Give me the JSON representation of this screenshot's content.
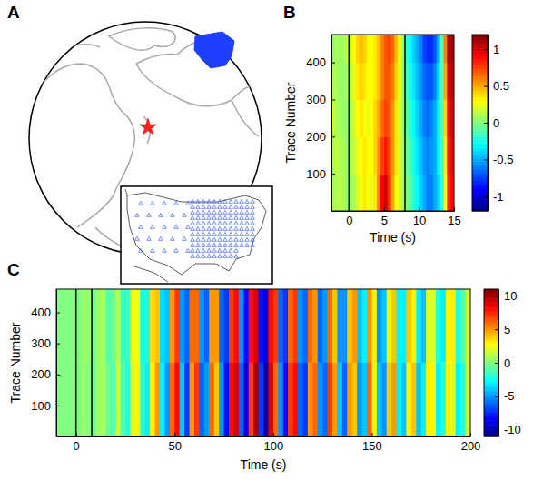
{
  "chart_data": [
    {
      "type": "map",
      "title": "A"
    },
    {
      "type": "heatmap",
      "title": "B",
      "xlabel": "Time (s)",
      "ylabel": "Trace Number",
      "xlim": [
        -2.5,
        15
      ],
      "xticks": [
        0,
        5,
        10,
        15
      ],
      "ylim": [
        0,
        475
      ],
      "yticks": [
        100,
        200,
        300,
        400
      ],
      "vlines": [
        0,
        8
      ],
      "cells": {
        "x": [
          -2.5,
          -2,
          -1.5,
          -1,
          -0.5,
          0,
          0.5,
          1,
          1.5,
          2,
          2.5,
          3,
          3.5,
          4,
          4.5,
          5,
          5.5,
          6,
          6.5,
          7,
          7.5,
          8,
          8.5,
          9,
          9.5,
          10,
          10.5,
          11,
          11.5,
          12,
          12.5,
          13,
          13.5,
          14,
          14.5,
          15
        ],
        "y": [
          0,
          100,
          200,
          300,
          400,
          475
        ],
        "values": [
          [
            0.1,
            0.1,
            0.15,
            0.1,
            0.05,
            0.05,
            0.1,
            0.2,
            0.3,
            0.35,
            0.3,
            0.25,
            0.35,
            0.6,
            0.9,
            1.0,
            0.8,
            0.5,
            0.3,
            0.2,
            0.1,
            0,
            -0.1,
            -0.2,
            -0.3,
            -0.4,
            -0.5,
            -0.6,
            -0.6,
            -0.5,
            -0.4,
            -0.2,
            0.3,
            0.8,
            0.9
          ],
          [
            0.1,
            0.15,
            0.1,
            0.1,
            0.05,
            0.1,
            0.15,
            0.25,
            0.3,
            0.35,
            0.3,
            0.3,
            0.4,
            0.55,
            0.75,
            0.85,
            0.75,
            0.55,
            0.35,
            0.2,
            0.1,
            -0.05,
            -0.15,
            -0.25,
            -0.35,
            -0.45,
            -0.55,
            -0.6,
            -0.55,
            -0.5,
            -0.35,
            -0.15,
            0.35,
            0.85,
            0.95
          ],
          [
            0.15,
            0.1,
            0.1,
            0.05,
            0.05,
            0.1,
            0.2,
            0.3,
            0.35,
            0.3,
            0.25,
            0.3,
            0.4,
            0.5,
            0.65,
            0.75,
            0.7,
            0.55,
            0.35,
            0.2,
            0.05,
            -0.1,
            -0.2,
            -0.3,
            -0.4,
            -0.5,
            -0.6,
            -0.65,
            -0.6,
            -0.5,
            -0.35,
            -0.1,
            0.4,
            0.9,
            1.0
          ],
          [
            0.1,
            0.1,
            0.05,
            0.05,
            0.1,
            0.15,
            0.25,
            0.35,
            0.4,
            0.35,
            0.3,
            0.3,
            0.35,
            0.45,
            0.6,
            0.7,
            0.7,
            0.6,
            0.4,
            0.25,
            0.05,
            -0.15,
            -0.25,
            -0.35,
            -0.45,
            -0.55,
            -0.65,
            -0.7,
            -0.7,
            -0.6,
            -0.4,
            -0.1,
            0.5,
            1.0,
            1.05
          ],
          [
            0.05,
            0.1,
            0.05,
            0.1,
            0.15,
            0.2,
            0.3,
            0.4,
            0.45,
            0.4,
            0.3,
            0.3,
            0.35,
            0.45,
            0.6,
            0.7,
            0.75,
            0.65,
            0.45,
            0.25,
            0.05,
            -0.2,
            -0.3,
            -0.4,
            -0.5,
            -0.6,
            -0.75,
            -0.8,
            -0.8,
            -0.7,
            -0.5,
            -0.1,
            0.6,
            1.1,
            1.1
          ]
        ]
      },
      "colorbar": {
        "range": [
          -1.2,
          1.2
        ],
        "ticks": [
          -1,
          -0.5,
          0,
          0.5,
          1
        ]
      }
    },
    {
      "type": "heatmap",
      "title": "C",
      "xlabel": "Time (s)",
      "ylabel": "Trace Number",
      "xlim": [
        -10,
        200
      ],
      "xticks": [
        0,
        50,
        100,
        150,
        200
      ],
      "ylim": [
        0,
        475
      ],
      "yticks": [
        100,
        200,
        300,
        400
      ],
      "vlines": [
        0,
        8
      ],
      "cells": {
        "x": [
          -10,
          -7.5,
          -5,
          -2.5,
          0,
          2.5,
          5,
          7.5,
          10,
          12.5,
          15,
          17.5,
          20,
          22.5,
          25,
          27.5,
          30,
          32.5,
          35,
          37.5,
          40,
          42.5,
          45,
          47.5,
          50,
          52.5,
          55,
          57.5,
          60,
          62.5,
          65,
          67.5,
          70,
          72.5,
          75,
          77.5,
          80,
          82.5,
          85,
          87.5,
          90,
          92.5,
          95,
          97.5,
          100,
          102.5,
          105,
          107.5,
          110,
          112.5,
          115,
          117.5,
          120,
          122.5,
          125,
          127.5,
          130,
          132.5,
          135,
          137.5,
          140,
          142.5,
          145,
          147.5,
          150,
          152.5,
          155,
          157.5,
          160,
          162.5,
          165,
          167.5,
          170,
          172.5,
          175,
          177.5,
          180,
          182.5,
          185,
          187.5,
          190,
          192.5,
          195,
          197.5,
          200
        ],
        "y": [
          0,
          240,
          475
        ],
        "values": [
          [
            0,
            0,
            0,
            0,
            0,
            0.5,
            0,
            -0.5,
            0.5,
            1,
            -0.5,
            -1,
            1.5,
            -1,
            -2,
            2,
            3,
            -2,
            -3,
            3,
            5,
            -3,
            -5,
            6,
            8,
            -4,
            -7,
            5,
            7,
            -6,
            -5,
            6,
            4,
            -5,
            -8,
            8,
            9,
            -6,
            -9,
            7,
            10,
            -7,
            -10,
            9,
            6,
            -5,
            -8,
            7,
            8,
            -6,
            -7,
            5,
            6,
            -5,
            -6,
            7,
            5,
            -4,
            -6,
            5,
            4,
            -5,
            -4,
            6,
            3,
            -4,
            -5,
            4,
            5,
            -3,
            -4,
            3,
            4,
            -4,
            -3,
            3,
            3,
            -3,
            -2,
            3,
            2,
            -3,
            -2,
            2
          ],
          [
            0,
            0,
            0,
            0,
            0,
            0.5,
            0.5,
            -0.5,
            0.5,
            1,
            -1,
            -0.5,
            1,
            -1.5,
            -1.5,
            2.5,
            2.5,
            -2.5,
            -2,
            3.5,
            4,
            -3.5,
            -4,
            5,
            7,
            -5,
            -6,
            6,
            6,
            -5,
            -6,
            5,
            5,
            -6,
            -7,
            7,
            8,
            -5,
            -8,
            8,
            9,
            -8,
            -9,
            8,
            7,
            -6,
            -7,
            6,
            7,
            -5,
            -6,
            6,
            5,
            -6,
            -5,
            6,
            4,
            -5,
            -5,
            4,
            5,
            -4,
            -3,
            5,
            3,
            -5,
            -4,
            3,
            4,
            -3,
            -3,
            4,
            3,
            -3,
            -4,
            2,
            2,
            -2,
            -3,
            3,
            3,
            -2,
            -1,
            2
          ]
        ]
      },
      "colorbar": {
        "range": [
          -11,
          11
        ],
        "ticks": [
          -10,
          -5,
          0,
          5,
          10
        ]
      }
    }
  ]
}
